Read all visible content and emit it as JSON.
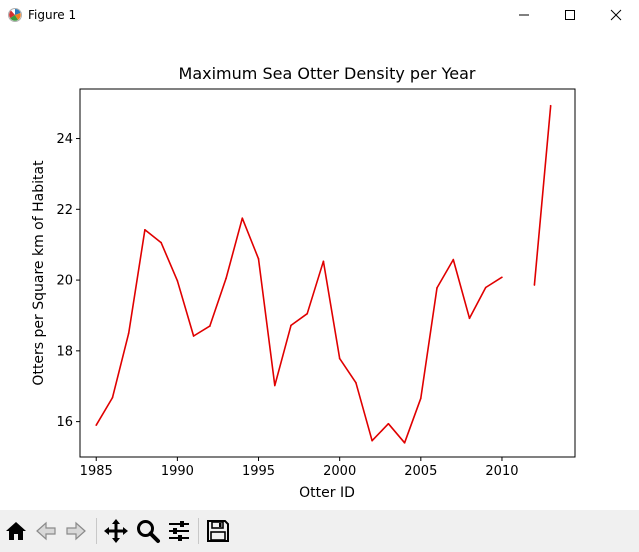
{
  "window": {
    "title": "Figure 1",
    "icons": [
      "app-icon",
      "minimize-icon",
      "maximize-icon",
      "close-icon"
    ]
  },
  "toolbar": {
    "buttons": [
      "home-icon",
      "back-icon",
      "forward-icon",
      "pan-icon",
      "zoom-icon",
      "configure-icon",
      "save-icon"
    ]
  },
  "chart_data": {
    "type": "line",
    "title": "Maximum Sea Otter Density per Year",
    "xlabel": "Otter ID",
    "ylabel": "Otters per Square km of Habitat",
    "xlim": [
      1984.0,
      2014.5
    ],
    "ylim": [
      15.0,
      25.4
    ],
    "xticks": [
      1985,
      1990,
      1995,
      2000,
      2005,
      2010
    ],
    "yticks": [
      16,
      18,
      20,
      22,
      24
    ],
    "grid": false,
    "line_color": "#e00000",
    "series": [
      {
        "x": [
          1985,
          1986,
          1987,
          1988,
          1989,
          1990,
          1991,
          1992,
          1993,
          1994,
          1995,
          1996,
          1997,
          1998,
          1999,
          2000,
          2001,
          2002,
          2003,
          2004,
          2005,
          2006,
          2007,
          2008,
          2009,
          2010,
          2011,
          2012,
          2013
        ],
        "y": [
          15.9,
          16.68,
          18.5,
          21.42,
          21.06,
          19.98,
          18.42,
          18.7,
          20.05,
          21.75,
          20.6,
          17.02,
          18.72,
          19.05,
          20.53,
          17.78,
          17.1,
          15.46,
          15.94,
          15.4,
          16.66,
          19.78,
          20.58,
          18.92,
          19.79,
          20.08,
          null,
          19.86,
          24.93
        ]
      }
    ]
  }
}
